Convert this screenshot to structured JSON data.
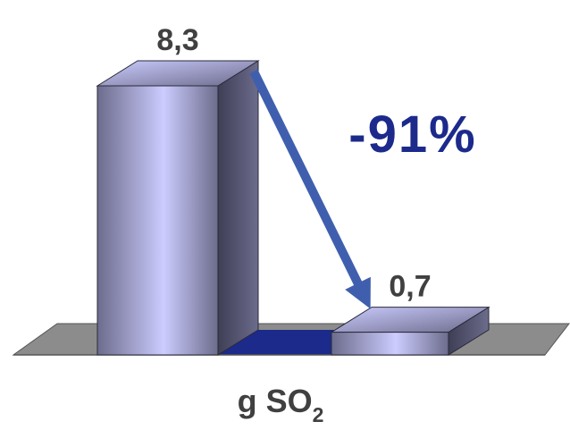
{
  "chart_data": {
    "type": "bar",
    "categories": [
      "",
      ""
    ],
    "values": [
      8.3,
      0.7
    ],
    "data_labels": [
      "8,3",
      "0,7"
    ],
    "change_annotation": "-91%",
    "xlabel_main": "g SO",
    "xlabel_subscript": "2",
    "ylim": [
      0,
      8.3
    ],
    "grid": false,
    "legend": "none",
    "three_d": true
  },
  "colors": {
    "bar_front_light": "#ccccff",
    "bar_front_dark": "#6c6c8c",
    "bar_side": "#3e3e56",
    "floor": "#8c8c8c",
    "floor_gap": "#1c2a8c",
    "arrow": "#3f5fae",
    "annotation_text": "#1c2a8c"
  }
}
